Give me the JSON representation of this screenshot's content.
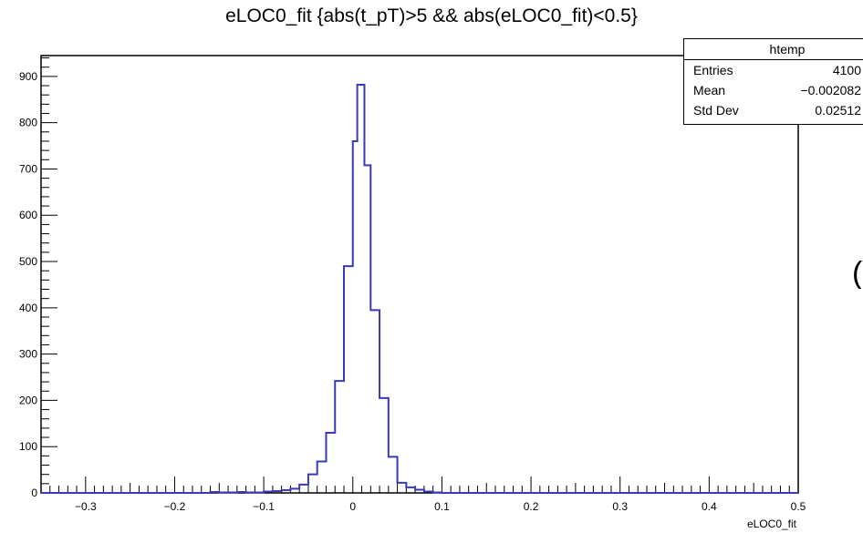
{
  "chart_data": {
    "type": "histogram",
    "title": "eLOC0_fit {abs(t_pT)>5 && abs(eLOC0_fit)<0.5}",
    "xlabel": "eLOC0_fit",
    "ylabel": "",
    "xlim": [
      -0.35,
      0.5
    ],
    "ylim": [
      0,
      945
    ],
    "grid": false,
    "xticks": [
      "−0.3",
      "−0.2",
      "−0.1",
      "0",
      "0.1",
      "0.2",
      "0.3",
      "0.4",
      "0.5"
    ],
    "xtick_values": [
      -0.3,
      -0.2,
      -0.1,
      0,
      0.1,
      0.2,
      0.3,
      0.4,
      0.5
    ],
    "yticks": [
      "0",
      "100",
      "200",
      "300",
      "400",
      "500",
      "600",
      "700",
      "800",
      "900"
    ],
    "ytick_values": [
      0,
      100,
      200,
      300,
      400,
      500,
      600,
      700,
      800,
      900
    ],
    "line_color": "#3a3ab8",
    "bins": [
      [
        -0.16,
        -0.15,
        2
      ],
      [
        -0.15,
        -0.14,
        1
      ],
      [
        -0.14,
        -0.13,
        1
      ],
      [
        -0.13,
        -0.12,
        2
      ],
      [
        -0.12,
        -0.11,
        1
      ],
      [
        -0.11,
        -0.1,
        1
      ],
      [
        -0.1,
        -0.09,
        3
      ],
      [
        -0.09,
        -0.08,
        4
      ],
      [
        -0.08,
        -0.07,
        6
      ],
      [
        -0.07,
        -0.06,
        9
      ],
      [
        -0.06,
        -0.05,
        18
      ],
      [
        -0.05,
        -0.04,
        40
      ],
      [
        -0.04,
        -0.03,
        68
      ],
      [
        -0.03,
        -0.02,
        130
      ],
      [
        -0.02,
        -0.01,
        242
      ],
      [
        -0.01,
        0.0,
        490
      ],
      [
        0.0,
        0.005,
        760
      ],
      [
        0.005,
        0.013,
        882
      ],
      [
        0.013,
        0.02,
        708
      ],
      [
        0.02,
        0.03,
        395
      ],
      [
        0.03,
        0.04,
        205
      ],
      [
        0.04,
        0.05,
        78
      ],
      [
        0.05,
        0.06,
        22
      ],
      [
        0.06,
        0.07,
        12
      ],
      [
        0.07,
        0.08,
        7
      ],
      [
        0.08,
        0.09,
        3
      ],
      [
        0.09,
        0.1,
        1
      ]
    ],
    "stats": {
      "name": "htemp",
      "entries_label": "Entries",
      "entries": "4100",
      "mean_label": "Mean",
      "mean": "−0.002082",
      "stddev_label": "Std Dev",
      "stddev": "0.02512"
    }
  },
  "edge_glyph": "("
}
